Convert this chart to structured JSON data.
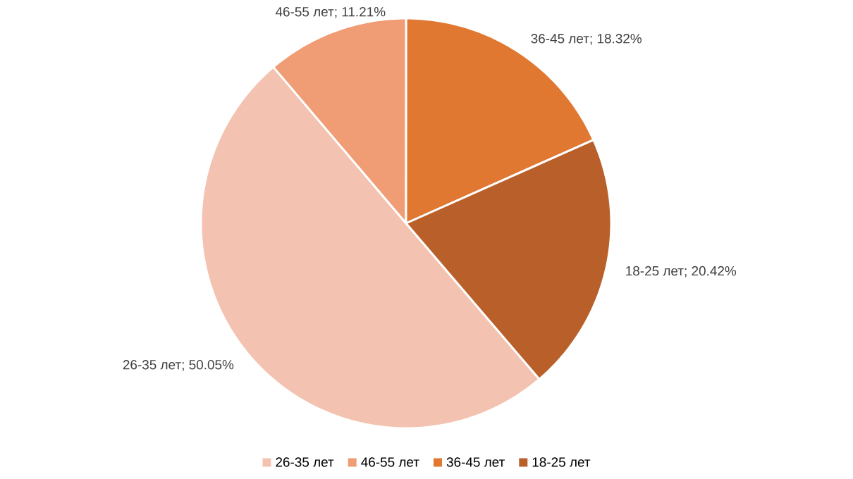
{
  "chart_data": {
    "type": "pie",
    "categories": [
      "26-35 лет",
      "46-55 лет",
      "36-45 лет",
      "18-25 лет"
    ],
    "values": [
      50.05,
      11.21,
      18.32,
      20.42
    ],
    "colors": [
      "#f4c2b0",
      "#f09c74",
      "#e07832",
      "#b9602a"
    ],
    "value_labels": [
      "; 50.05%",
      "; 11.21%",
      "; 18.32%",
      "; 20.42%"
    ],
    "legend": "bottom"
  }
}
